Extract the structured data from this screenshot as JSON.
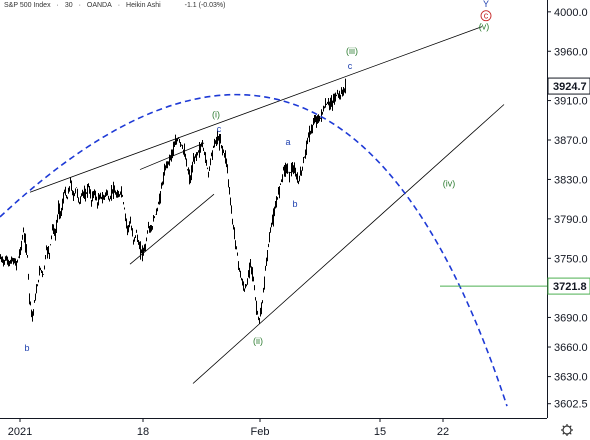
{
  "header": {
    "symbol": "S&P 500 Index",
    "interval": "30",
    "source": "OANDA",
    "chart_style": "Heikin Ashi",
    "change": "-1.1 (-0.03%)",
    "dot_color": "#26a69a"
  },
  "chart_data": {
    "type": "candlestick",
    "title": "S&P 500 Index · 30 · OANDA · Heikin Ashi",
    "y_ticks": [
      "4000.0",
      "3960.0",
      "3870.0",
      "3830.0",
      "3790.0",
      "3750.0",
      "3690.0",
      "3660.0",
      "3630.0",
      "3602.5"
    ],
    "y_tick_values": [
      4000,
      3960,
      3870,
      3830,
      3790,
      3750,
      3690,
      3660,
      3630,
      3602.5
    ],
    "highlighted_price_labels": [
      "3910.0"
    ],
    "x_ticks": [
      "2021",
      "18",
      "Feb",
      "15",
      "22"
    ],
    "ylim": [
      3588,
      4012
    ],
    "price_path": [
      [
        0,
        3750
      ],
      [
        3,
        3747
      ],
      [
        6,
        3749
      ],
      [
        9,
        3745
      ],
      [
        12,
        3748
      ],
      [
        16,
        3744
      ],
      [
        20,
        3758
      ],
      [
        23,
        3777
      ],
      [
        25,
        3765
      ],
      [
        27,
        3752
      ],
      [
        29,
        3712
      ],
      [
        32,
        3690
      ],
      [
        34,
        3705
      ],
      [
        37,
        3722
      ],
      [
        40,
        3740
      ],
      [
        43,
        3733
      ],
      [
        46,
        3760
      ],
      [
        49,
        3755
      ],
      [
        52,
        3782
      ],
      [
        55,
        3773
      ],
      [
        58,
        3800
      ],
      [
        61,
        3796
      ],
      [
        64,
        3818
      ],
      [
        67,
        3810
      ],
      [
        70,
        3828
      ],
      [
        73,
        3812
      ],
      [
        76,
        3822
      ],
      [
        79,
        3805
      ],
      [
        82,
        3818
      ],
      [
        85,
        3812
      ],
      [
        88,
        3824
      ],
      [
        91,
        3808
      ],
      [
        94,
        3818
      ],
      [
        97,
        3805
      ],
      [
        100,
        3813
      ],
      [
        103,
        3810
      ],
      [
        106,
        3818
      ],
      [
        109,
        3808
      ],
      [
        112,
        3820
      ],
      [
        115,
        3815
      ],
      [
        118,
        3812
      ],
      [
        121,
        3819
      ],
      [
        124,
        3800
      ],
      [
        127,
        3780
      ],
      [
        130,
        3786
      ],
      [
        133,
        3768
      ],
      [
        136,
        3776
      ],
      [
        139,
        3760
      ],
      [
        142,
        3756
      ],
      [
        145,
        3762
      ],
      [
        148,
        3783
      ],
      [
        151,
        3778
      ],
      [
        154,
        3792
      ],
      [
        157,
        3800
      ],
      [
        160,
        3815
      ],
      [
        163,
        3832
      ],
      [
        166,
        3845
      ],
      [
        169,
        3850
      ],
      [
        172,
        3858
      ],
      [
        175,
        3866
      ],
      [
        178,
        3872
      ],
      [
        181,
        3865
      ],
      [
        184,
        3857
      ],
      [
        187,
        3840
      ],
      [
        190,
        3830
      ],
      [
        193,
        3848
      ],
      [
        196,
        3855
      ],
      [
        199,
        3860
      ],
      [
        202,
        3866
      ],
      [
        205,
        3852
      ],
      [
        208,
        3836
      ],
      [
        211,
        3855
      ],
      [
        214,
        3866
      ],
      [
        217,
        3872
      ],
      [
        220,
        3868
      ],
      [
        223,
        3858
      ],
      [
        226,
        3850
      ],
      [
        229,
        3818
      ],
      [
        232,
        3788
      ],
      [
        235,
        3768
      ],
      [
        238,
        3745
      ],
      [
        241,
        3728
      ],
      [
        244,
        3718
      ],
      [
        247,
        3725
      ],
      [
        250,
        3748
      ],
      [
        253,
        3728
      ],
      [
        256,
        3700
      ],
      [
        259,
        3685
      ],
      [
        262,
        3705
      ],
      [
        265,
        3738
      ],
      [
        268,
        3763
      ],
      [
        271,
        3785
      ],
      [
        274,
        3795
      ],
      [
        277,
        3812
      ],
      [
        280,
        3825
      ],
      [
        283,
        3840
      ],
      [
        286,
        3842
      ],
      [
        289,
        3835
      ],
      [
        292,
        3842
      ],
      [
        295,
        3835
      ],
      [
        298,
        3828
      ],
      [
        301,
        3838
      ],
      [
        304,
        3852
      ],
      [
        307,
        3870
      ],
      [
        310,
        3878
      ],
      [
        313,
        3886
      ],
      [
        316,
        3892
      ],
      [
        319,
        3890
      ],
      [
        322,
        3898
      ],
      [
        325,
        3905
      ],
      [
        328,
        3908
      ],
      [
        331,
        3906
      ],
      [
        334,
        3912
      ],
      [
        337,
        3917
      ],
      [
        340,
        3915
      ],
      [
        343,
        3920
      ],
      [
        346,
        3924.7
      ]
    ],
    "trend_lines": [
      {
        "name": "upper-channel",
        "from": [
          30,
          3817
        ],
        "to": [
          482,
          3985
        ]
      },
      {
        "name": "lower-channel",
        "from": [
          193,
          3623
        ],
        "to": [
          504,
          3906
        ]
      },
      {
        "name": "wave-i-line",
        "from": [
          140,
          3840
        ],
        "to": [
          204,
          3867
        ]
      },
      {
        "name": "wave-ii-line",
        "from": [
          130,
          3744
        ],
        "to": [
          214,
          3815
        ]
      }
    ],
    "arc": {
      "from": [
        0,
        3792
      ],
      "peak": [
        297,
        3905
      ],
      "to": [
        507,
        3600
      ],
      "color": "#1e3ad6",
      "dashed": true
    },
    "horizontal_line": {
      "value": 3721.8,
      "from_x": 440,
      "color": "#4caf50"
    },
    "wave_labels": [
      {
        "text": "b",
        "x": 27,
        "y": 3656,
        "color": "#1e40af"
      },
      {
        "text": "(i)",
        "x": 216,
        "y": 3893,
        "color": "#2e7d32"
      },
      {
        "text": "c",
        "x": 219,
        "y": 3878,
        "color": "#1e40af"
      },
      {
        "text": "a",
        "x": 288,
        "y": 3865,
        "color": "#1e40af"
      },
      {
        "text": "b",
        "x": 295,
        "y": 3802,
        "color": "#1e40af"
      },
      {
        "text": "(ii)",
        "x": 258,
        "y": 3663,
        "color": "#2e7d32"
      },
      {
        "text": "(iii)",
        "x": 352,
        "y": 3957,
        "color": "#2e7d32"
      },
      {
        "text": "c",
        "x": 350,
        "y": 3942,
        "color": "#1e40af"
      },
      {
        "text": "(iv)",
        "x": 449,
        "y": 3823,
        "color": "#2e7d32"
      },
      {
        "text": "Y",
        "x": 486,
        "y": 4005,
        "color": "#1e40af"
      },
      {
        "text": "c",
        "x": 486,
        "y": 3993,
        "color": "#c62828",
        "circled": true
      },
      {
        "text": "(v)",
        "x": 484,
        "y": 3982,
        "color": "#2e7d32"
      }
    ],
    "price_labels": [
      {
        "text": "3924.7",
        "value": 3924.7,
        "bg": "#ffffff",
        "fg": "#131722",
        "border": "#131722"
      },
      {
        "text": "3721.8",
        "value": 3721.8,
        "bg": "#ffffff",
        "fg": "#131722",
        "border": "#4caf50"
      }
    ],
    "x_tick_positions": [
      20,
      143,
      260,
      380,
      443
    ],
    "grid": false,
    "colors": {
      "up": "#000000",
      "down": "#000000",
      "axis": "#131722"
    }
  }
}
